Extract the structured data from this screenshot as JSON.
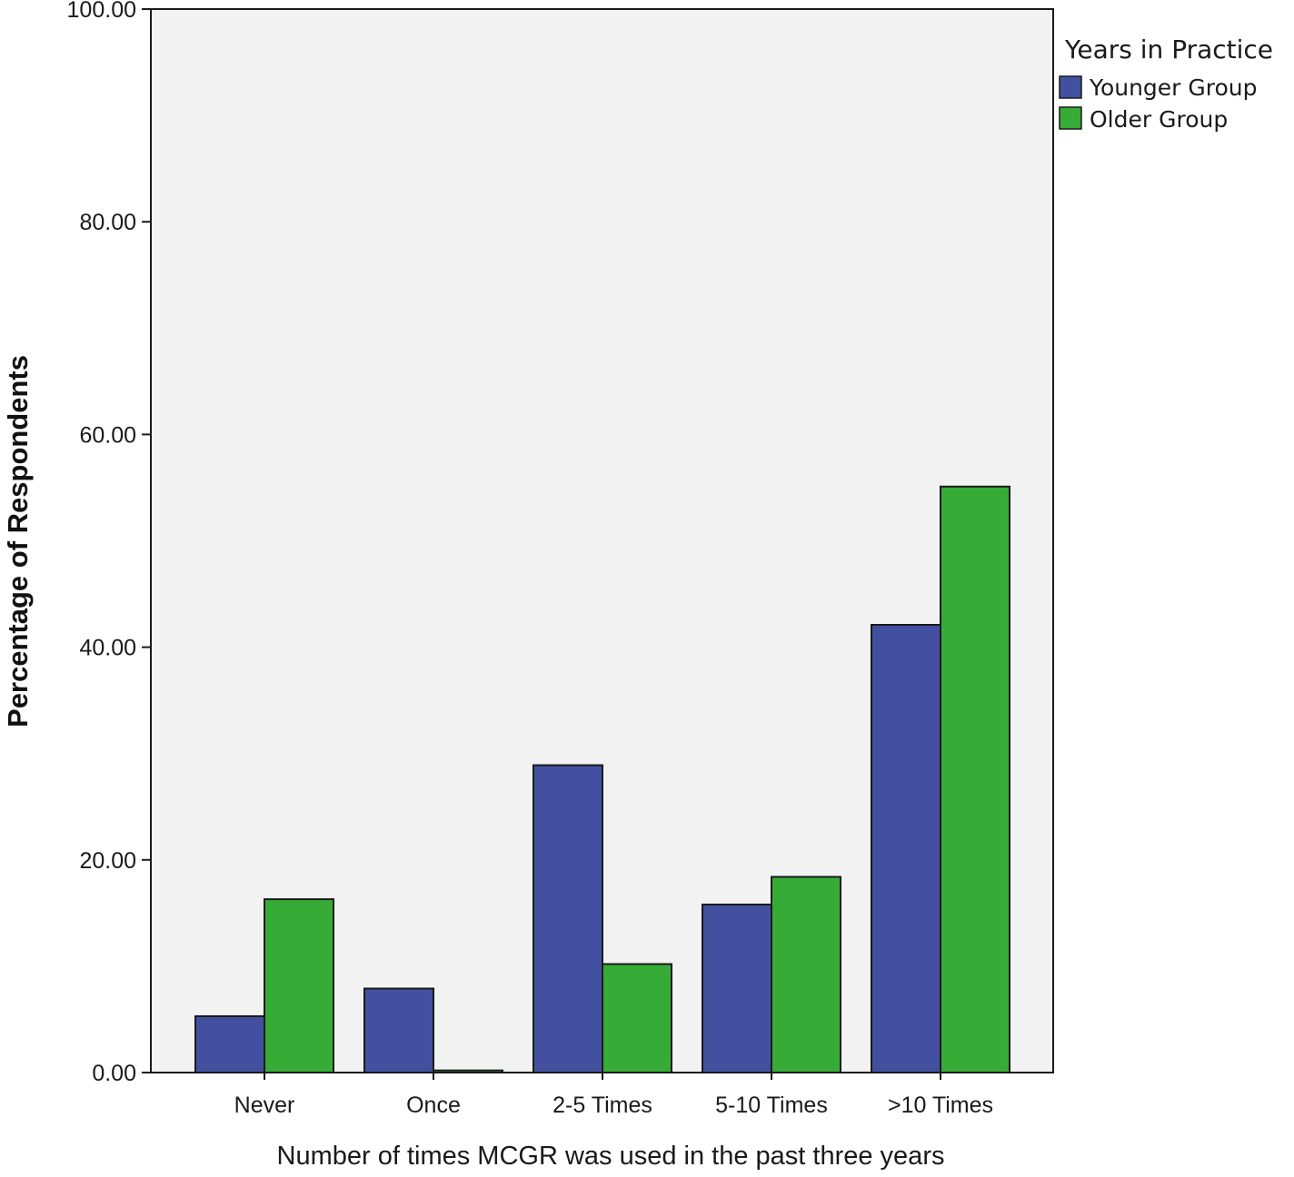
{
  "chart_data": {
    "type": "bar",
    "title": "",
    "xlabel": "Number of times MCGR was used in the past three years",
    "ylabel": "Percentage of Respondents",
    "ylim": [
      0,
      100
    ],
    "yticks": [
      "0.00",
      "20.00",
      "40.00",
      "60.00",
      "80.00",
      "100.00"
    ],
    "ytick_values": [
      0,
      20,
      40,
      60,
      80,
      100
    ],
    "categories": [
      "Never",
      "Once",
      "2-5 Times",
      "5-10 Times",
      ">10 Times"
    ],
    "legend": {
      "title": "Years in Practice",
      "placement": "right"
    },
    "series": [
      {
        "name": "Younger Group",
        "color": "#4350a0",
        "values": [
          5.3,
          7.9,
          28.9,
          15.8,
          42.1
        ]
      },
      {
        "name": "Older Group",
        "color": "#36ac36",
        "values": [
          16.3,
          0.2,
          10.2,
          18.4,
          55.1
        ]
      }
    ],
    "plot_background": "#f2f2f2",
    "grid": false
  }
}
